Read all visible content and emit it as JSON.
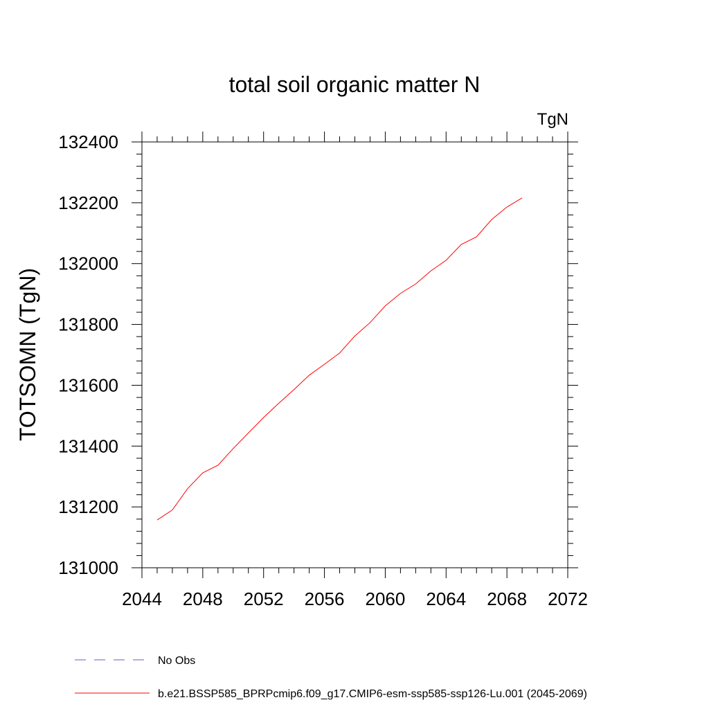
{
  "chart_data": {
    "type": "line",
    "title": "total soil organic matter N",
    "units_label": "TgN",
    "xlabel": "",
    "ylabel": "TOTSOMN  (TgN)",
    "xlim": [
      2044,
      2072
    ],
    "ylim": [
      131000,
      132400
    ],
    "x_ticks": [
      2044,
      2048,
      2052,
      2056,
      2060,
      2064,
      2068,
      2072
    ],
    "y_ticks": [
      131000,
      131200,
      131400,
      131600,
      131800,
      132000,
      132200,
      132400
    ],
    "x_tick_labels": [
      "2044",
      "2048",
      "2052",
      "2056",
      "2060",
      "2064",
      "2068",
      "2072"
    ],
    "y_tick_labels": [
      "131000",
      "131200",
      "131400",
      "131600",
      "131800",
      "132000",
      "132200",
      "132400"
    ],
    "grid": false,
    "legend_position": "bottom",
    "series": [
      {
        "name": "b.e21.BSSP585_BPRPcmip6.f09_g17.CMIP6-esm-ssp585-ssp126-Lu.001 (2045-2069)",
        "color": "#ff0000",
        "line_style": "solid",
        "x": [
          2045,
          2046,
          2047,
          2048,
          2049,
          2050,
          2051,
          2052,
          2053,
          2054,
          2055,
          2056,
          2057,
          2058,
          2059,
          2060,
          2061,
          2062,
          2063,
          2064,
          2065,
          2066,
          2067,
          2068,
          2069
        ],
        "y": [
          131157,
          131190,
          131260,
          131312,
          131337,
          131392,
          131443,
          131494,
          131541,
          131586,
          131633,
          131669,
          131706,
          131762,
          131806,
          131861,
          131902,
          131933,
          131976,
          132011,
          132063,
          132088,
          132145,
          132186,
          132216
        ]
      }
    ],
    "legend": [
      {
        "label": "No Obs",
        "color": "#6a5acd",
        "line_style": "dashed"
      },
      {
        "label": "b.e21.BSSP585_BPRPcmip6.f09_g17.CMIP6-esm-ssp585-ssp126-Lu.001 (2045-2069)",
        "color": "#ff0000",
        "line_style": "solid"
      }
    ]
  }
}
